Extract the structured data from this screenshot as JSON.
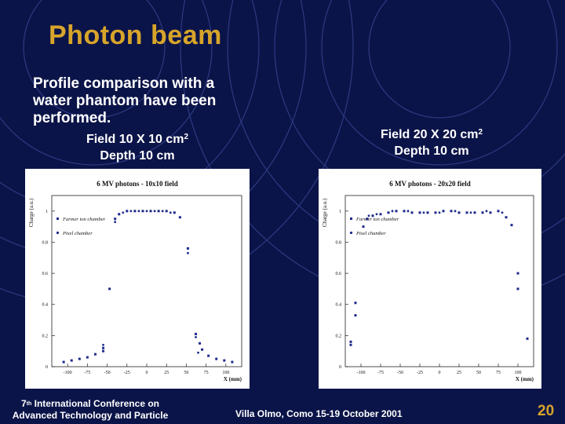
{
  "slide": {
    "title": "Photon beam",
    "intro": "Profile comparison with a water phantom have been performed.",
    "left_caption": {
      "line1": "Field 10 X 10 cm",
      "sup": "2",
      "line2": "Depth 10 cm"
    },
    "right_caption": {
      "line1": "Field 20 X 20 cm",
      "sup": "2",
      "line2": "Depth 10 cm"
    },
    "footer_left": {
      "sup": "th",
      "pre": "7",
      "line1": " International Conference on",
      "line2": "Advanced Technology and Particle"
    },
    "footer_mid": "Villa Olmo, Como 15-19 October 2001",
    "page_number": "20",
    "colors": {
      "background": "#0b1448",
      "title": "#d7a52a",
      "text": "#ffffff",
      "series": "#1c2a8c"
    }
  },
  "chart_data": [
    {
      "type": "scatter",
      "title": "6 MV photons - 10x10 field",
      "xlabel": "X (mm)",
      "ylabel": "Charge (a.u.)",
      "xlim": [
        -120,
        120
      ],
      "ylim": [
        0,
        1.1
      ],
      "xticks": [
        -100,
        -75,
        -50,
        -25,
        0,
        25,
        50,
        75,
        100
      ],
      "xtick_labels": [
        "-100",
        "-75",
        "-50",
        "-25",
        "0",
        "25",
        "50",
        "75",
        "100"
      ],
      "yticks": [
        0,
        0.2,
        0.4,
        0.6,
        0.8,
        1.0
      ],
      "ytick_labels": [
        "0",
        "0.2",
        "0.4",
        "0.6",
        "0.8",
        "1"
      ],
      "legend": "top-left",
      "series": [
        {
          "name": "Farmer ion chamber",
          "marker": "square",
          "points": [
            [
              -105,
              0.03
            ],
            [
              -95,
              0.04
            ],
            [
              -85,
              0.05
            ],
            [
              -75,
              0.06
            ],
            [
              -65,
              0.08
            ],
            [
              -55,
              0.1
            ],
            [
              -55,
              0.12
            ],
            [
              -47,
              0.5
            ],
            [
              -40,
              0.95
            ],
            [
              -35,
              0.98
            ],
            [
              -25,
              1.0
            ],
            [
              -15,
              1.0
            ],
            [
              -5,
              1.0
            ],
            [
              5,
              1.0
            ],
            [
              15,
              1.0
            ],
            [
              25,
              1.0
            ],
            [
              35,
              0.99
            ],
            [
              42,
              0.96
            ],
            [
              52,
              0.76
            ],
            [
              62,
              0.21
            ],
            [
              67,
              0.15
            ],
            [
              70,
              0.11
            ],
            [
              78,
              0.07
            ],
            [
              88,
              0.05
            ],
            [
              98,
              0.04
            ],
            [
              108,
              0.03
            ]
          ]
        },
        {
          "name": "Pixel chamber",
          "marker": "circle",
          "points": [
            [
              -55,
              0.14
            ],
            [
              -40,
              0.93
            ],
            [
              -30,
              0.99
            ],
            [
              -20,
              1.0
            ],
            [
              -10,
              1.0
            ],
            [
              0,
              1.0
            ],
            [
              10,
              1.0
            ],
            [
              20,
              1.0
            ],
            [
              30,
              0.99
            ],
            [
              52,
              0.73
            ],
            [
              62,
              0.19
            ],
            [
              65,
              0.09
            ]
          ]
        }
      ]
    },
    {
      "type": "scatter",
      "title": "6 MV photons - 20x20 field",
      "xlabel": "X (mm)",
      "ylabel": "Charge (a.u.)",
      "xlim": [
        -120,
        120
      ],
      "ylim": [
        0,
        1.1
      ],
      "xticks": [
        -100,
        -75,
        -50,
        -25,
        0,
        25,
        50,
        75,
        100
      ],
      "xtick_labels": [
        "-100",
        "-75",
        "-50",
        "-25",
        "0",
        "25",
        "50",
        "75",
        "100"
      ],
      "yticks": [
        0,
        0.2,
        0.4,
        0.6,
        0.8,
        1.0
      ],
      "ytick_labels": [
        "0",
        "0.2",
        "0.4",
        "0.6",
        "0.8",
        "1"
      ],
      "legend": "top-left",
      "series": [
        {
          "name": "Farmer ion chamber",
          "marker": "square",
          "points": [
            [
              -113,
              0.16
            ],
            [
              -113,
              0.14
            ],
            [
              -107,
              0.41
            ],
            [
              -107,
              0.33
            ],
            [
              -97,
              0.9
            ],
            [
              -92,
              0.95
            ],
            [
              -85,
              0.97
            ],
            [
              -75,
              0.98
            ],
            [
              -65,
              0.99
            ],
            [
              -55,
              1.0
            ],
            [
              -45,
              1.0
            ],
            [
              -35,
              0.99
            ],
            [
              -25,
              0.99
            ],
            [
              -15,
              0.99
            ],
            [
              -5,
              0.99
            ],
            [
              5,
              1.0
            ],
            [
              15,
              1.0
            ],
            [
              25,
              0.99
            ],
            [
              35,
              0.99
            ],
            [
              45,
              0.99
            ],
            [
              55,
              0.99
            ],
            [
              65,
              0.99
            ],
            [
              75,
              1.0
            ],
            [
              85,
              0.96
            ],
            [
              92,
              0.91
            ],
            [
              100,
              0.5
            ],
            [
              100,
              0.6
            ],
            [
              112,
              0.18
            ]
          ]
        },
        {
          "name": "Pixel chamber",
          "marker": "circle",
          "points": [
            [
              -90,
              0.97
            ],
            [
              -80,
              0.98
            ],
            [
              -60,
              1.0
            ],
            [
              -40,
              1.0
            ],
            [
              -20,
              0.99
            ],
            [
              0,
              0.99
            ],
            [
              20,
              1.0
            ],
            [
              40,
              0.99
            ],
            [
              60,
              1.0
            ],
            [
              80,
              0.99
            ],
            [
              100,
              0.6
            ]
          ]
        }
      ]
    }
  ]
}
